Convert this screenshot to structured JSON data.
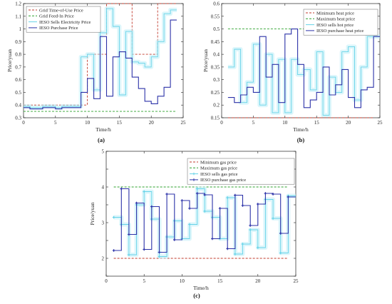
{
  "chart_data": [
    {
      "type": "line",
      "panel_label": "(a)",
      "xlabel": "Time/h",
      "ylabel": "Price/yuan",
      "xlim": [
        0,
        25
      ],
      "ylim": [
        0.3,
        1.2
      ],
      "xticks": [
        0,
        5,
        10,
        15,
        20,
        25
      ],
      "yticks": [
        0.3,
        0.4,
        0.5,
        0.6,
        0.7,
        0.8,
        0.9,
        1.0,
        1.1,
        1.2
      ],
      "ytick_labels": [
        "0.3",
        "0.4",
        "0.5",
        "0.6",
        "0.7",
        "0.8",
        "0.9",
        "1",
        "1.1",
        "1.2"
      ],
      "legend_position": "top-left",
      "x": [
        1,
        2,
        3,
        4,
        5,
        6,
        7,
        8,
        9,
        10,
        11,
        12,
        13,
        14,
        15,
        16,
        17,
        18,
        19,
        20,
        21,
        22,
        23,
        24
      ],
      "series": [
        {
          "name": "Grid Time-of-Use Price",
          "style": "dashed",
          "color": "#c0392b",
          "step": true,
          "values": [
            0.4,
            0.4,
            0.4,
            0.4,
            0.4,
            0.4,
            0.4,
            0.4,
            0.4,
            0.4,
            0.8,
            0.8,
            0.8,
            1.2,
            1.2,
            1.2,
            1.2,
            0.8,
            0.8,
            0.8,
            0.8,
            1.2,
            1.2,
            1.2
          ]
        },
        {
          "name": "Grid Feed-In Price",
          "style": "dashed",
          "color": "#2ca02c",
          "step": false,
          "values": [
            0.35,
            0.35,
            0.35,
            0.35,
            0.35,
            0.35,
            0.35,
            0.35,
            0.35,
            0.35,
            0.35,
            0.35,
            0.35,
            0.35,
            0.35,
            0.35,
            0.35,
            0.35,
            0.35,
            0.35,
            0.35,
            0.35,
            0.35,
            0.35
          ]
        },
        {
          "name": "IESO Sells Electricity Price",
          "style": "solid",
          "color": "#66d3e8",
          "step": true,
          "values": [
            0.39,
            0.38,
            0.38,
            0.39,
            0.39,
            0.38,
            0.39,
            0.39,
            0.39,
            0.78,
            0.8,
            0.52,
            0.97,
            1.16,
            1.02,
            0.48,
            0.98,
            0.74,
            0.73,
            0.7,
            0.78,
            0.9,
            1.12,
            1.15
          ]
        },
        {
          "name": "IESO Purchase Price",
          "style": "solid",
          "color": "#2c32a8",
          "step": true,
          "values": [
            0.38,
            0.37,
            0.37,
            0.38,
            0.38,
            0.37,
            0.38,
            0.38,
            0.38,
            0.5,
            0.61,
            0.45,
            0.94,
            0.47,
            0.78,
            0.82,
            0.77,
            0.62,
            0.53,
            0.43,
            0.41,
            0.47,
            0.54,
            1.07
          ]
        }
      ]
    },
    {
      "type": "line",
      "panel_label": "(b)",
      "xlabel": "Time/h",
      "ylabel": "Price/yuan",
      "xlim": [
        0,
        25
      ],
      "ylim": [
        0.15,
        0.6
      ],
      "xticks": [
        0,
        5,
        10,
        15,
        20,
        25
      ],
      "yticks": [
        0.15,
        0.2,
        0.25,
        0.3,
        0.35,
        0.4,
        0.45,
        0.5,
        0.55,
        0.6
      ],
      "ytick_labels": [
        "0.15",
        "0.2",
        "0.25",
        "0.3",
        "0.35",
        "0.4",
        "0.45",
        "0.5",
        "0.55",
        "0.6"
      ],
      "legend_position": "top-right",
      "x": [
        1,
        2,
        3,
        4,
        5,
        6,
        7,
        8,
        9,
        10,
        11,
        12,
        13,
        14,
        15,
        16,
        17,
        18,
        19,
        20,
        21,
        22,
        23,
        24
      ],
      "series": [
        {
          "name": "Minimum heat price",
          "style": "dashed",
          "color": "#c0392b",
          "step": false,
          "values": [
            0.15,
            0.15,
            0.15,
            0.15,
            0.15,
            0.15,
            0.15,
            0.15,
            0.15,
            0.15,
            0.15,
            0.15,
            0.15,
            0.15,
            0.15,
            0.15,
            0.15,
            0.15,
            0.15,
            0.15,
            0.15,
            0.15,
            0.15,
            0.15
          ]
        },
        {
          "name": "Maximum heat price",
          "style": "dashed",
          "color": "#2ca02c",
          "step": false,
          "values": [
            0.5,
            0.5,
            0.5,
            0.5,
            0.5,
            0.5,
            0.5,
            0.5,
            0.5,
            0.5,
            0.5,
            0.5,
            0.5,
            0.5,
            0.5,
            0.5,
            0.5,
            0.5,
            0.5,
            0.5,
            0.5,
            0.5,
            0.5,
            0.5
          ]
        },
        {
          "name": "IESO sells hot price",
          "style": "solid",
          "color": "#66d3e8",
          "step": true,
          "values": [
            0.35,
            0.42,
            0.21,
            0.29,
            0.44,
            0.2,
            0.4,
            0.17,
            0.38,
            0.17,
            0.38,
            0.32,
            0.34,
            0.26,
            0.41,
            0.16,
            0.31,
            0.25,
            0.41,
            0.43,
            0.22,
            0.35,
            0.47,
            0.47
          ]
        },
        {
          "name": "IESO purchase heat price",
          "style": "solid",
          "color": "#2c32a8",
          "step": true,
          "values": [
            0.23,
            0.21,
            0.24,
            0.27,
            0.25,
            0.47,
            0.31,
            0.36,
            0.21,
            0.48,
            0.5,
            0.36,
            0.19,
            0.22,
            0.25,
            0.35,
            0.24,
            0.28,
            0.34,
            0.23,
            0.19,
            0.26,
            0.27,
            0.47
          ]
        }
      ]
    },
    {
      "type": "line",
      "panel_label": "(c)",
      "xlabel": "Time/h",
      "ylabel": "Price/yuan",
      "xlim": [
        0,
        25
      ],
      "ylim": [
        1.5,
        5
      ],
      "xticks": [
        0,
        5,
        10,
        15,
        20,
        25
      ],
      "yticks": [
        1.5,
        2,
        2.5,
        3,
        3.5,
        4,
        4.5,
        5
      ],
      "ytick_labels": [
        "",
        "2",
        "",
        "3",
        "",
        "4",
        "",
        "5"
      ],
      "legend_position": "top-right",
      "x": [
        1,
        2,
        3,
        4,
        5,
        6,
        7,
        8,
        9,
        10,
        11,
        12,
        13,
        14,
        15,
        16,
        17,
        18,
        19,
        20,
        21,
        22,
        23,
        24
      ],
      "series": [
        {
          "name": "Minimum gas price",
          "style": "dashed",
          "color": "#c0392b",
          "step": false,
          "values": [
            2,
            2,
            2,
            2,
            2,
            2,
            2,
            2,
            2,
            2,
            2,
            2,
            2,
            2,
            2,
            2,
            2,
            2,
            2,
            2,
            2,
            2,
            2,
            2
          ]
        },
        {
          "name": "Maximum gas price",
          "style": "dashed",
          "color": "#2ca02c",
          "step": false,
          "values": [
            4,
            4,
            4,
            4,
            4,
            4,
            4,
            4,
            4,
            4,
            4,
            4,
            4,
            4,
            4,
            4,
            4,
            4,
            4,
            4,
            4,
            4,
            4,
            4
          ]
        },
        {
          "name": "IESO sells gas price",
          "style": "solid-marker",
          "color": "#66d3e8",
          "step": true,
          "values": [
            3.15,
            2.95,
            2.1,
            3.5,
            3.87,
            3.1,
            2.05,
            2.6,
            3.05,
            2.55,
            2.95,
            3.95,
            3.32,
            3.15,
            2.55,
            3.7,
            2.12,
            2.4,
            2.8,
            2.3,
            3.65,
            3.12,
            2.15,
            3.75
          ]
        },
        {
          "name": "IESO purchase gas price",
          "style": "solid-marker",
          "color": "#2c32a8",
          "step": true,
          "values": [
            2.22,
            3.95,
            2.67,
            3.55,
            2.25,
            3.45,
            2.17,
            3.8,
            2.52,
            3.62,
            3.4,
            3.82,
            3.78,
            2.55,
            3.4,
            2.27,
            3.77,
            3.48,
            2.92,
            3.52,
            3.82,
            3.8,
            2.7,
            3.72
          ]
        }
      ]
    }
  ]
}
